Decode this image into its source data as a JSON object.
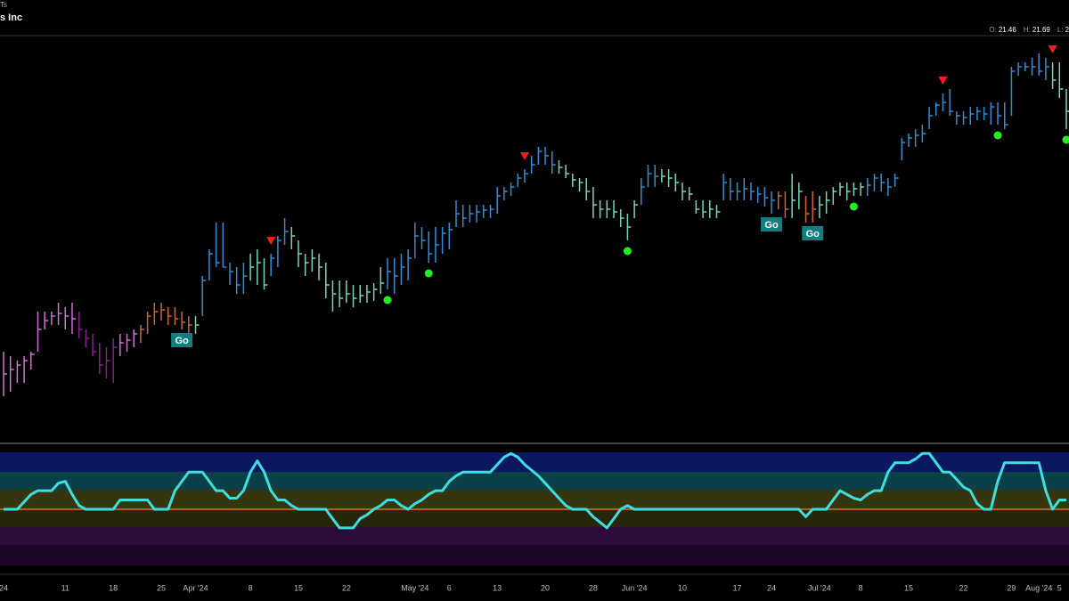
{
  "header": {
    "ticker": "Ts",
    "title": "s Inc",
    "ohlc": [
      {
        "label": "O:",
        "value": "21.46"
      },
      {
        "label": "H:",
        "value": "21.69"
      },
      {
        "label": "L:",
        "value": "2"
      }
    ]
  },
  "chart_data": [
    {
      "type": "ohlc",
      "categories": [
        "24",
        null,
        null,
        null,
        null,
        null,
        null,
        null,
        null,
        "11",
        null,
        null,
        null,
        null,
        null,
        null,
        "18",
        null,
        null,
        null,
        null,
        null,
        null,
        "25",
        null,
        null,
        null,
        null,
        "Apr '24",
        null,
        null,
        null,
        null,
        null,
        null,
        null,
        "8",
        null,
        null,
        null,
        null,
        null,
        null,
        "15",
        null,
        null,
        null,
        null,
        null,
        null,
        "22",
        null,
        null,
        null,
        null,
        null,
        null,
        null,
        null,
        null,
        "May '24",
        null,
        null,
        null,
        null,
        "6",
        null,
        null,
        null,
        null,
        null,
        null,
        "13",
        null,
        null,
        null,
        null,
        null,
        null,
        "20",
        null,
        null,
        null,
        null,
        null,
        null,
        "28",
        null,
        null,
        null,
        null,
        null,
        "Jun '24",
        null,
        null,
        null,
        null,
        null,
        null,
        "10",
        null,
        null,
        null,
        null,
        null,
        null,
        null,
        "17",
        null,
        null,
        null,
        null,
        "24",
        null,
        null,
        null,
        null,
        null,
        null,
        "Jul '24",
        null,
        null,
        null,
        null,
        null,
        "8",
        null,
        null,
        null,
        null,
        null,
        null,
        "15",
        null,
        null,
        null,
        null,
        null,
        null,
        null,
        "22",
        null,
        null,
        null,
        null,
        null,
        null,
        "29",
        null,
        null,
        null,
        "Aug '24",
        null,
        null,
        "5",
        null
      ],
      "high": [
        16.06,
        15.96,
        15.86,
        15.96,
        16.06,
        16.96,
        16.96,
        16.96,
        17.16,
        17.06,
        17.16,
        16.96,
        16.56,
        16.46,
        16.26,
        16.16,
        16.36,
        16.46,
        16.46,
        16.56,
        16.66,
        16.96,
        17.16,
        17.16,
        17.06,
        17.06,
        16.96,
        16.86,
        16.86,
        17.76,
        18.36,
        18.96,
        18.96,
        18.06,
        17.96,
        18.06,
        18.26,
        18.36,
        18.16,
        18.26,
        18.66,
        19.06,
        18.86,
        18.56,
        18.26,
        18.36,
        18.26,
        18.06,
        17.66,
        17.66,
        17.66,
        17.56,
        17.56,
        17.56,
        17.6,
        17.96,
        18.16,
        18.16,
        18.26,
        18.36,
        18.96,
        18.86,
        18.76,
        18.86,
        18.86,
        18.96,
        19.46,
        19.36,
        19.36,
        19.36,
        19.36,
        19.36,
        19.76,
        19.76,
        19.86,
        20.06,
        20.16,
        20.46,
        20.66,
        20.66,
        20.56,
        20.36,
        20.26,
        20.06,
        19.96,
        19.96,
        19.76,
        19.46,
        19.46,
        19.46,
        19.26,
        19.16,
        19.46,
        19.96,
        20.26,
        20.26,
        20.16,
        20.16,
        20.06,
        19.86,
        19.76,
        19.46,
        19.46,
        19.46,
        19.36,
        20.06,
        19.96,
        19.86,
        19.96,
        19.86,
        19.76,
        19.76,
        19.66,
        19.66,
        19.66,
        20.06,
        19.86,
        19.56,
        19.66,
        19.56,
        19.66,
        19.76,
        19.86,
        19.86,
        19.86,
        19.86,
        19.96,
        20.06,
        20.06,
        19.96,
        20.06,
        20.86,
        20.96,
        21.06,
        21.16,
        21.56,
        21.66,
        21.86,
        21.96,
        21.46,
        21.46,
        21.56,
        21.56,
        21.56,
        21.66,
        21.66,
        21.66,
        22.46,
        22.56,
        22.56,
        22.66,
        22.76,
        22.66,
        22.56,
        22.56,
        21.96
      ],
      "low": [
        15.06,
        15.16,
        15.36,
        15.36,
        15.66,
        16.06,
        16.56,
        16.66,
        16.66,
        16.56,
        16.46,
        16.36,
        16.16,
        15.96,
        15.56,
        15.46,
        15.36,
        15.96,
        16.06,
        16.16,
        16.26,
        16.46,
        16.66,
        16.76,
        16.66,
        16.66,
        16.56,
        16.46,
        16.46,
        16.86,
        17.66,
        17.96,
        17.96,
        17.56,
        17.36,
        17.36,
        17.66,
        17.56,
        17.46,
        17.76,
        17.96,
        18.46,
        18.36,
        17.96,
        17.76,
        17.86,
        17.66,
        17.26,
        16.96,
        17.06,
        17.16,
        17.06,
        17.16,
        17.16,
        17.2,
        17.36,
        17.46,
        17.36,
        17.56,
        17.66,
        18.16,
        18.36,
        18.06,
        18.06,
        18.26,
        18.36,
        18.86,
        18.86,
        18.96,
        18.96,
        19.06,
        19.06,
        19.16,
        19.46,
        19.56,
        19.76,
        19.86,
        20.06,
        20.26,
        20.26,
        20.06,
        20.06,
        19.96,
        19.76,
        19.66,
        19.46,
        19.06,
        19.06,
        19.06,
        19.06,
        18.86,
        18.56,
        19.06,
        19.36,
        19.76,
        19.76,
        19.86,
        19.76,
        19.66,
        19.46,
        19.46,
        19.16,
        19.06,
        19.06,
        19.06,
        19.46,
        19.46,
        19.46,
        19.46,
        19.46,
        19.4,
        19.32,
        19.16,
        19.26,
        19.06,
        19.06,
        19.26,
        18.96,
        18.96,
        19.06,
        19.16,
        19.36,
        19.56,
        19.46,
        19.56,
        19.56,
        19.56,
        19.66,
        19.66,
        19.56,
        19.76,
        20.36,
        20.66,
        20.66,
        20.76,
        21.06,
        21.36,
        21.46,
        21.36,
        21.16,
        21.16,
        21.16,
        21.26,
        21.26,
        21.16,
        21.16,
        21.06,
        21.36,
        22.26,
        22.36,
        22.26,
        22.26,
        22.16,
        21.96,
        21.76,
        21.06
      ],
      "close": [
        15.56,
        15.66,
        15.76,
        15.86,
        16.0,
        16.56,
        16.76,
        16.86,
        16.92,
        16.86,
        16.8,
        16.56,
        16.36,
        16.06,
        15.76,
        15.86,
        16.16,
        16.26,
        16.32,
        16.46,
        16.56,
        16.86,
        16.96,
        17.0,
        16.86,
        16.8,
        16.72,
        16.66,
        16.66,
        17.66,
        18.26,
        18.06,
        17.96,
        17.86,
        17.56,
        17.76,
        17.96,
        18.06,
        17.56,
        18.16,
        18.56,
        18.76,
        18.66,
        18.26,
        18.06,
        18.16,
        17.96,
        17.56,
        17.36,
        17.26,
        17.36,
        17.26,
        17.32,
        17.4,
        17.46,
        17.6,
        17.86,
        17.76,
        17.96,
        18.16,
        18.66,
        18.56,
        18.26,
        18.46,
        18.72,
        18.8,
        19.16,
        19.06,
        19.16,
        19.2,
        19.24,
        19.26,
        19.56,
        19.66,
        19.76,
        19.96,
        20.06,
        20.26,
        20.56,
        20.46,
        20.26,
        20.2,
        20.06,
        19.92,
        19.86,
        19.66,
        19.36,
        19.26,
        19.26,
        19.2,
        19.06,
        18.86,
        19.36,
        19.76,
        20.06,
        20.0,
        20.0,
        19.96,
        19.86,
        19.66,
        19.6,
        19.26,
        19.2,
        19.26,
        19.2,
        19.86,
        19.66,
        19.66,
        19.72,
        19.66,
        19.6,
        19.52,
        19.46,
        19.56,
        19.26,
        19.46,
        19.66,
        19.16,
        19.26,
        19.36,
        19.46,
        19.66,
        19.76,
        19.66,
        19.72,
        19.76,
        19.8,
        19.96,
        19.86,
        19.76,
        19.96,
        20.76,
        20.86,
        20.92,
        20.96,
        21.36,
        21.6,
        21.66,
        21.46,
        21.36,
        21.32,
        21.4,
        21.46,
        21.4,
        21.56,
        21.36,
        21.16,
        22.36,
        22.46,
        22.46,
        22.46,
        22.36,
        22.46,
        22.16,
        21.96,
        21.46
      ],
      "colors": [
        "#d46fd4",
        "#d46fd4",
        "#d46fd4",
        "#d46fd4",
        "#d46fd4",
        "#d46fd4",
        "#d46fd4",
        "#d46fd4",
        "#d46fd4",
        "#d46fd4",
        "#d46fd4",
        "#8b1f8b",
        "#8b1f8b",
        "#8b1f8b",
        "#8b1f8b",
        "#8b1f8b",
        "#8b1f8b",
        "#d46fd4",
        "#d46fd4",
        "#d46fd4",
        "#c8692e",
        "#c8692e",
        "#c8692e",
        "#c8692e",
        "#c8692e",
        "#c8692e",
        "#c8692e",
        "#c8692e",
        "#76d6b4",
        "#2e8fd6",
        "#2e8fd6",
        "#2e8fd6",
        "#2e8fd6",
        "#2e8fd6",
        "#2e8fd6",
        "#2e8fd6",
        "#76d6b4",
        "#76d6b4",
        "#76d6b4",
        "#2e8fd6",
        "#2e8fd6",
        "#2e8fd6",
        "#76d6b4",
        "#76d6b4",
        "#76d6b4",
        "#76d6b4",
        "#76d6b4",
        "#76d6b4",
        "#76d6b4",
        "#76d6b4",
        "#76d6b4",
        "#76d6b4",
        "#76d6b4",
        "#76d6b4",
        "#76d6b4",
        "#76d6b4",
        "#2e8fd6",
        "#2e8fd6",
        "#2e8fd6",
        "#2e8fd6",
        "#2e8fd6",
        "#2e8fd6",
        "#2e8fd6",
        "#2e8fd6",
        "#2e8fd6",
        "#2e8fd6",
        "#2e8fd6",
        "#2e8fd6",
        "#2e8fd6",
        "#2e8fd6",
        "#2e8fd6",
        "#2e8fd6",
        "#2e8fd6",
        "#2e8fd6",
        "#2e8fd6",
        "#2e8fd6",
        "#2e8fd6",
        "#2e8fd6",
        "#2e8fd6",
        "#2e8fd6",
        "#2e8fd6",
        "#76d6b4",
        "#76d6b4",
        "#76d6b4",
        "#76d6b4",
        "#76d6b4",
        "#76d6b4",
        "#76d6b4",
        "#76d6b4",
        "#76d6b4",
        "#76d6b4",
        "#76d6b4",
        "#76d6b4",
        "#2e8fd6",
        "#2e8fd6",
        "#2e8fd6",
        "#76d6b4",
        "#76d6b4",
        "#76d6b4",
        "#76d6b4",
        "#76d6b4",
        "#76d6b4",
        "#76d6b4",
        "#76d6b4",
        "#76d6b4",
        "#2e8fd6",
        "#2e8fd6",
        "#2e8fd6",
        "#2e8fd6",
        "#2e8fd6",
        "#2e8fd6",
        "#2e8fd6",
        "#2e8fd6",
        "#c8692e",
        "#c8692e",
        "#76d6b4",
        "#76d6b4",
        "#c8692e",
        "#c8692e",
        "#76d6b4",
        "#76d6b4",
        "#76d6b4",
        "#76d6b4",
        "#76d6b4",
        "#76d6b4",
        "#76d6b4",
        "#2e8fd6",
        "#2e8fd6",
        "#2e8fd6",
        "#2e8fd6",
        "#2e8fd6",
        "#2e8fd6",
        "#2e8fd6",
        "#2e8fd6",
        "#2e8fd6",
        "#2e8fd6",
        "#2e8fd6",
        "#2e8fd6",
        "#2e8fd6",
        "#2e8fd6",
        "#2e8fd6",
        "#2e8fd6",
        "#2e8fd6",
        "#2e8fd6",
        "#2e8fd6",
        "#2e8fd6",
        "#2e8fd6",
        "#2e8fd6",
        "#2e8fd6",
        "#2e8fd6",
        "#2e8fd6",
        "#2e8fd6",
        "#2e8fd6",
        "#76d6b4",
        "#76d6b4",
        "#76d6b4"
      ],
      "ylim": [
        14.0,
        23.16
      ],
      "down_arrows": {
        "color": "#ff1a1a",
        "indices": [
          39,
          76,
          137,
          153
        ]
      },
      "dots": {
        "color": "#22ee22",
        "indices": [
          26,
          56,
          62,
          91,
          124,
          145,
          155
        ]
      },
      "go_signals": {
        "label": "Go",
        "color": "#137e80",
        "indices": [
          26,
          112,
          118
        ]
      }
    },
    {
      "type": "line",
      "values": [
        0,
        0,
        0,
        0.4,
        0.8,
        1,
        1,
        1,
        1.4,
        1.5,
        0.8,
        0.2,
        0,
        0,
        0,
        0,
        0,
        0.5,
        0.5,
        0.5,
        0.5,
        0.5,
        0,
        0,
        0,
        1,
        1.5,
        2,
        2,
        2,
        1.5,
        1,
        1,
        0.6,
        0.6,
        1,
        2,
        2.6,
        2,
        1,
        0.5,
        0.5,
        0.2,
        0,
        0,
        0,
        0,
        0,
        -0.5,
        -1,
        -1,
        -1,
        -0.5,
        -0.3,
        0,
        0.2,
        0.5,
        0.5,
        0.2,
        0,
        0.3,
        0.5,
        0.8,
        1,
        1,
        1.5,
        1.8,
        2,
        2,
        2,
        2,
        2,
        2.4,
        2.8,
        3,
        2.8,
        2.4,
        2.1,
        1.8,
        1.4,
        1,
        0.6,
        0.2,
        0,
        0,
        0,
        -0.4,
        -0.7,
        -1,
        -0.5,
        0,
        0.2,
        0,
        0,
        0,
        0,
        0,
        0,
        0,
        0,
        0,
        0,
        0,
        0,
        0,
        0,
        0,
        0,
        0,
        0,
        0,
        0,
        0,
        0,
        0,
        0,
        0,
        -0.4,
        0,
        0,
        0,
        0.5,
        1,
        0.8,
        0.6,
        0.5,
        0.8,
        1,
        1,
        2,
        2.5,
        2.5,
        2.5,
        2.7,
        3,
        3,
        2.5,
        2,
        2,
        1.6,
        1.2,
        1,
        0.3,
        0,
        0,
        1.5,
        2.5,
        2.5,
        2.5,
        2.5,
        2.5,
        2.5,
        1,
        0,
        0.5,
        0.5
      ],
      "color": "#3fdede",
      "ylim": [
        -3.2,
        3.4
      ]
    }
  ]
}
